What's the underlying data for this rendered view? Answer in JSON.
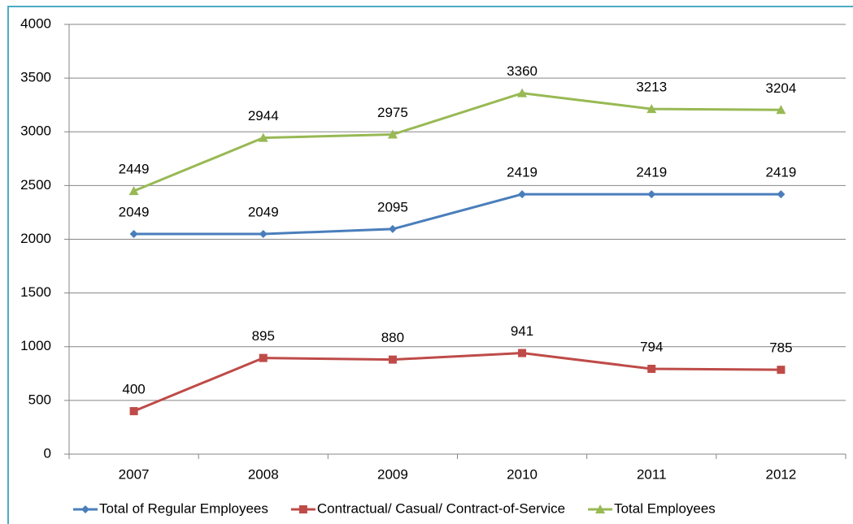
{
  "chart_data": {
    "type": "line",
    "categories": [
      "2007",
      "2008",
      "2009",
      "2010",
      "2011",
      "2012"
    ],
    "series": [
      {
        "name": "Total of Regular Employees",
        "color": "#4a7ebb",
        "marker": "diamond",
        "values": [
          2049,
          2049,
          2095,
          2419,
          2419,
          2419
        ]
      },
      {
        "name": "Contractual/ Casual/ Contract-of-Service",
        "color": "#be4b48",
        "marker": "square",
        "values": [
          400,
          895,
          880,
          941,
          794,
          785
        ]
      },
      {
        "name": "Total Employees",
        "color": "#98b954",
        "marker": "triangle",
        "values": [
          2449,
          2944,
          2975,
          3360,
          3213,
          3204
        ]
      }
    ],
    "ylim": [
      0,
      4000
    ],
    "yticks": [
      0,
      500,
      1000,
      1500,
      2000,
      2500,
      3000,
      3500,
      4000
    ],
    "grid": true,
    "legend": "bottom",
    "data_labels": true
  }
}
